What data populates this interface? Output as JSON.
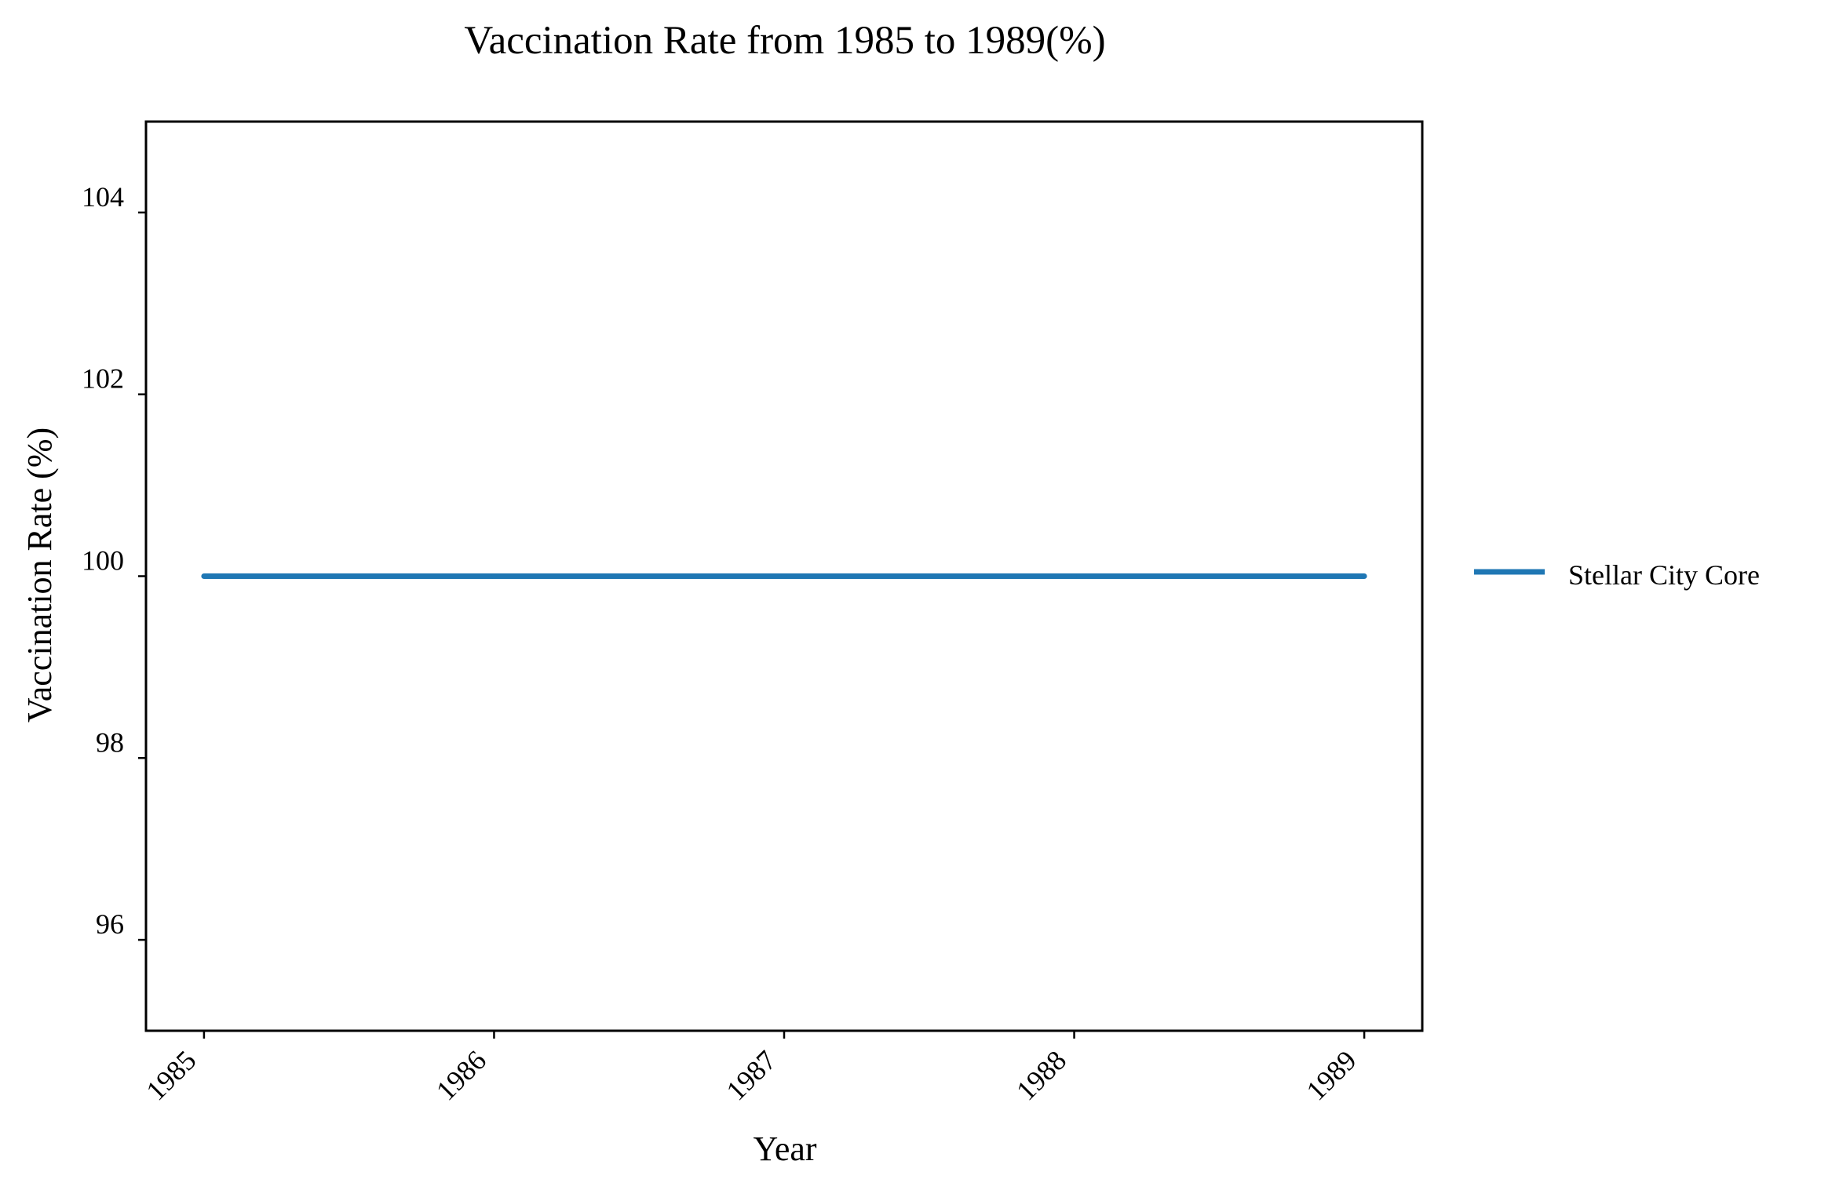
{
  "chart_data": {
    "type": "line",
    "title": "Vaccination Rate from 1985 to 1989(%)",
    "xlabel": "Year",
    "ylabel": "Vaccination Rate (%)",
    "x": [
      "1985",
      "1986",
      "1987",
      "1988",
      "1989"
    ],
    "series": [
      {
        "name": "Stellar City Core",
        "values": [
          100,
          100,
          100,
          100,
          100
        ],
        "color": "#1f77b4"
      }
    ],
    "ylim": [
      95,
      105
    ],
    "yticks": [
      96,
      98,
      100,
      102,
      104
    ],
    "ytick_labels": [
      "96",
      "98",
      "100",
      "102",
      "104"
    ],
    "xlim": [
      1984.8,
      1989.2
    ],
    "grid": false,
    "legend_position": "right"
  }
}
